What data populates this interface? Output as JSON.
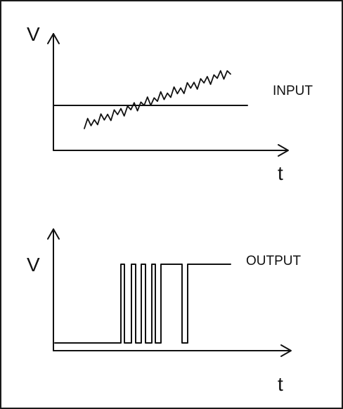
{
  "top_graph": {
    "y_axis_label": "V",
    "x_axis_label": "t",
    "trace_label": "INPUT"
  },
  "bottom_graph": {
    "y_axis_label": "V",
    "x_axis_label": "t",
    "trace_label": "OUTPUT"
  }
}
